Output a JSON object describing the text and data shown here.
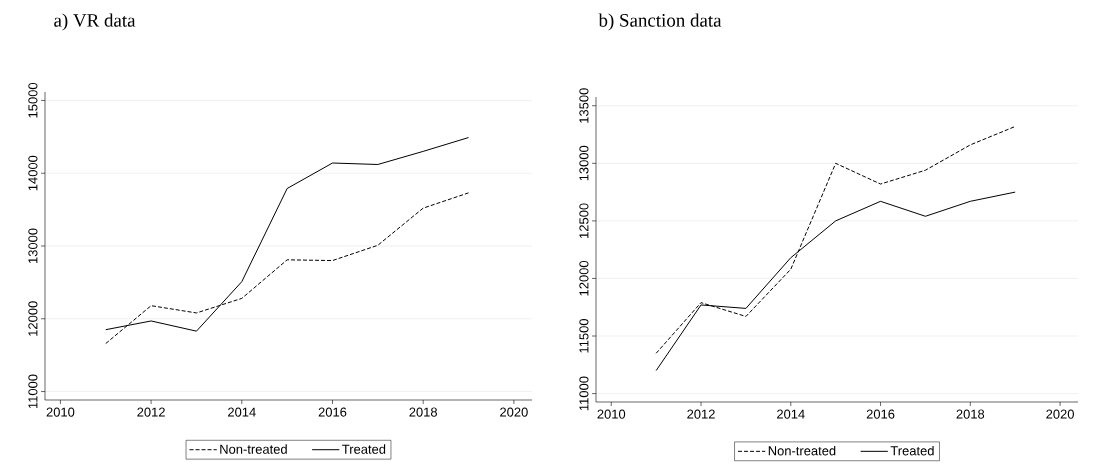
{
  "chart_data": [
    {
      "type": "line",
      "title": "a)   VR data",
      "x": [
        2011,
        2012,
        2013,
        2014,
        2015,
        2016,
        2017,
        2018,
        2019
      ],
      "series": [
        {
          "name": "Non-treated",
          "color": "#000000",
          "line_style": "dashed",
          "values": [
            11660,
            12180,
            12080,
            12280,
            12810,
            12800,
            13010,
            13520,
            13730
          ]
        },
        {
          "name": "Treated",
          "color": "#000000",
          "line_style": "solid",
          "values": [
            11850,
            11970,
            11830,
            12510,
            13790,
            14140,
            14120,
            14300,
            14490
          ]
        }
      ],
      "xlim": [
        2009.66,
        2020.4
      ],
      "xticks": [
        2010,
        2012,
        2014,
        2016,
        2018,
        2020
      ],
      "ylim": [
        10884,
        15116
      ],
      "yticks": [
        11000,
        12000,
        13000,
        14000,
        15000
      ],
      "grid": "y",
      "legend": "bottom",
      "marker": "none"
    },
    {
      "type": "line",
      "title": "b) Sanction data",
      "x": [
        2011,
        2012,
        2013,
        2014,
        2015,
        2016,
        2017,
        2018,
        2019
      ],
      "series": [
        {
          "name": "Non-treated",
          "color": "#000000",
          "line_style": "dashed",
          "values": [
            11350,
            11790,
            11670,
            12080,
            13000,
            12820,
            12940,
            13160,
            13320
          ]
        },
        {
          "name": "Treated",
          "color": "#000000",
          "line_style": "solid",
          "values": [
            11200,
            11770,
            11740,
            12180,
            12500,
            12670,
            12540,
            12670,
            12750
          ]
        }
      ],
      "xlim": [
        2009.66,
        2020.4
      ],
      "xticks": [
        2010,
        2012,
        2014,
        2016,
        2018,
        2020
      ],
      "ylim": [
        10927,
        13576
      ],
      "yticks": [
        11000,
        11500,
        12000,
        12500,
        13000,
        13500
      ],
      "grid": "y",
      "legend": "bottom",
      "marker": "none"
    }
  ]
}
